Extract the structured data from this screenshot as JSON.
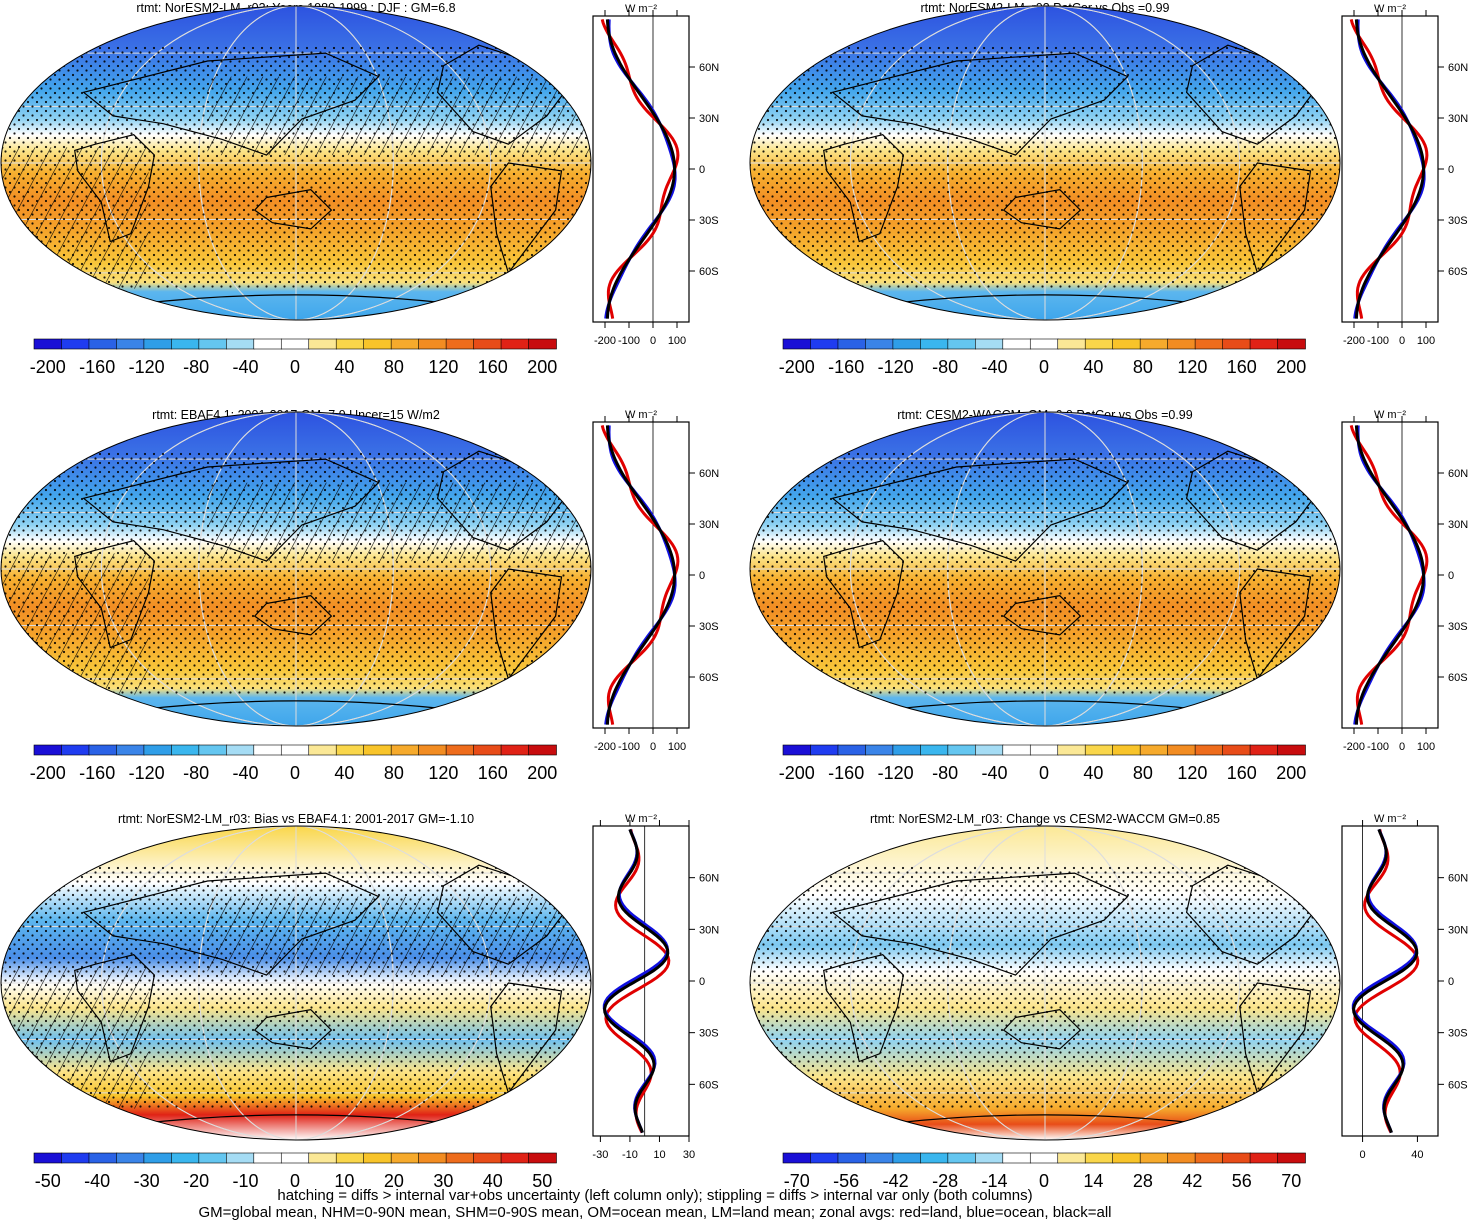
{
  "chart_data": [
    {
      "type": "map",
      "title": "rtmt: NorESM2-LM_r03: Years 1980-1999 : DJF : GM=6.8",
      "colorbar": {
        "min": -200,
        "max": 200,
        "ticks": [
          "-200",
          "-160",
          "-120",
          "-80",
          "-40",
          "0",
          "40",
          "80",
          "120",
          "160",
          "200"
        ]
      },
      "hatching": true,
      "zonal": {
        "xticks": [
          "-200",
          "-100",
          "0",
          "100"
        ],
        "xlim": [
          -250,
          150
        ],
        "yticks": [
          "60N",
          "30N",
          "0",
          "30S",
          "60S"
        ],
        "unit": "W m⁻²"
      }
    },
    {
      "type": "map",
      "title": "rtmt: NorESM2-LM_r03 PatCor vs Obs =0.99",
      "colorbar": {
        "min": -200,
        "max": 200,
        "ticks": [
          "-200",
          "-160",
          "-120",
          "-80",
          "-40",
          "0",
          "40",
          "80",
          "120",
          "160",
          "200"
        ]
      },
      "hatching": false,
      "zonal": {
        "xticks": [
          "-200",
          "-100",
          "0",
          "100"
        ],
        "xlim": [
          -250,
          150
        ],
        "yticks": [
          "60N",
          "30N",
          "0",
          "30S",
          "60S"
        ],
        "unit": "W m⁻²"
      }
    },
    {
      "type": "map",
      "title": "rtmt: EBAF4.1: 2001-2017 GM=7.9 Uncer=15 W/m2",
      "colorbar": {
        "min": -200,
        "max": 200,
        "ticks": [
          "-200",
          "-160",
          "-120",
          "-80",
          "-40",
          "0",
          "40",
          "80",
          "120",
          "160",
          "200"
        ]
      },
      "hatching": true,
      "zonal": {
        "xticks": [
          "-200",
          "-100",
          "0",
          "100"
        ],
        "xlim": [
          -250,
          150
        ],
        "yticks": [
          "60N",
          "30N",
          "0",
          "30S",
          "60S"
        ],
        "unit": "W m⁻²"
      }
    },
    {
      "type": "map",
      "title": "rtmt: CESM2-WACCM: GM=6.0 PatCor vs Obs =0.99",
      "colorbar": {
        "min": -200,
        "max": 200,
        "ticks": [
          "-200",
          "-160",
          "-120",
          "-80",
          "-40",
          "0",
          "40",
          "80",
          "120",
          "160",
          "200"
        ]
      },
      "hatching": false,
      "zonal": {
        "xticks": [
          "-200",
          "-100",
          "0",
          "100"
        ],
        "xlim": [
          -250,
          150
        ],
        "yticks": [
          "60N",
          "30N",
          "0",
          "30S",
          "60S"
        ],
        "unit": "W m⁻²"
      }
    },
    {
      "type": "map",
      "title": "rtmt: NorESM2-LM_r03: Bias vs EBAF4.1: 2001-2017 GM=-1.10",
      "colorbar": {
        "min": -50,
        "max": 50,
        "ticks": [
          "-50",
          "-40",
          "-30",
          "-20",
          "-10",
          "0",
          "10",
          "20",
          "30",
          "40",
          "50"
        ]
      },
      "hatching": true,
      "zonal": {
        "xticks": [
          "-30",
          "-10",
          "10",
          "30"
        ],
        "xlim": [
          -35,
          30
        ],
        "yticks": [
          "60N",
          "30N",
          "0",
          "30S",
          "60S"
        ],
        "unit": "W m⁻²"
      }
    },
    {
      "type": "map",
      "title": "rtmt: NorESM2-LM_r03: Change vs CESM2-WACCM GM=0.85",
      "colorbar": {
        "min": -70,
        "max": 70,
        "ticks": [
          "-70",
          "-56",
          "-42",
          "-28",
          "-14",
          "0",
          "14",
          "28",
          "42",
          "56",
          "70"
        ]
      },
      "hatching": false,
      "zonal": {
        "xticks": [
          "0",
          "40"
        ],
        "xlim": [
          -15,
          55
        ],
        "yticks": [
          "60N",
          "30N",
          "0",
          "30S",
          "60S"
        ],
        "unit": "W m⁻²"
      }
    }
  ],
  "zonal_series_legend": {
    "land": "#e00000",
    "ocean": "#1010e0",
    "all": "#000000"
  },
  "colors": {
    "colorbar": [
      "#1a0fd6",
      "#1f3cf0",
      "#2a62e6",
      "#3a84e8",
      "#2f9ee8",
      "#3ab6ee",
      "#64c6f0",
      "#a5dcf4",
      "#ffffff",
      "#ffffff",
      "#fbe896",
      "#f9d64a",
      "#f8c42a",
      "#f6aa2c",
      "#f28c22",
      "#ee6c1c",
      "#e84c18",
      "#e02216",
      "#c80c0e"
    ]
  },
  "footer": {
    "line1": "hatching = diffs > internal var+obs uncertainty (left column only); stippling = diffs > internal var only (both columns)",
    "line2": "GM=global mean, NHM=0-90N mean, SHM=0-90S mean, OM=ocean mean, LM=land mean; zonal avgs: red=land, blue=ocean, black=all"
  }
}
